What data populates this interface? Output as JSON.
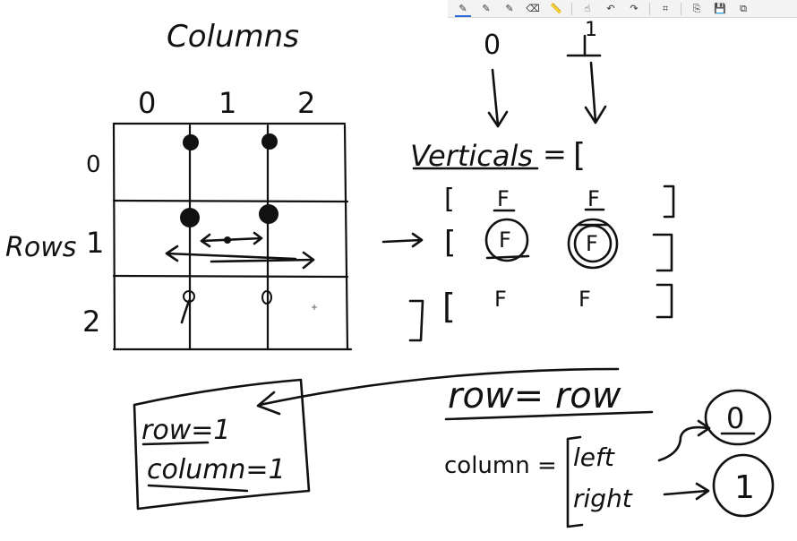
{
  "toolbar": {
    "tools": [
      {
        "name": "ballpoint-pen",
        "glyph": "✎",
        "active": true
      },
      {
        "name": "pencil",
        "glyph": "✎",
        "active": false
      },
      {
        "name": "highlighter",
        "glyph": "✎",
        "active": false
      },
      {
        "name": "eraser",
        "glyph": "⌫",
        "active": false
      },
      {
        "name": "ruler",
        "glyph": "📏",
        "active": false
      },
      {
        "name": "touch-writing",
        "glyph": "☝",
        "active": false
      },
      {
        "name": "undo",
        "glyph": "↶",
        "active": false
      },
      {
        "name": "redo",
        "glyph": "↷",
        "active": false
      },
      {
        "name": "crop",
        "glyph": "⌗",
        "active": false
      },
      {
        "name": "copy",
        "glyph": "⎘",
        "active": false
      },
      {
        "name": "save",
        "glyph": "💾",
        "active": false
      },
      {
        "name": "share",
        "glyph": "⧉",
        "active": false
      }
    ]
  },
  "board": {
    "columns_label": "Columns",
    "rows_label": "Rows",
    "col_indices": [
      "0",
      "1",
      "2"
    ],
    "row_indices": [
      "0",
      "1",
      "2"
    ],
    "verticals_label": "Verticals",
    "equals": "=",
    "open_bracket": "[",
    "vertical_indices": [
      "0",
      "1"
    ],
    "verticals_values": [
      [
        "F",
        "F"
      ],
      [
        "F",
        "F"
      ],
      [
        "F",
        "F"
      ]
    ],
    "box_row": "row=1",
    "box_column": "column=1",
    "eq_row": "row= row",
    "eq_column": "column =",
    "left_label": "left",
    "right_label": "right",
    "left_value": "0",
    "right_value": "1"
  }
}
